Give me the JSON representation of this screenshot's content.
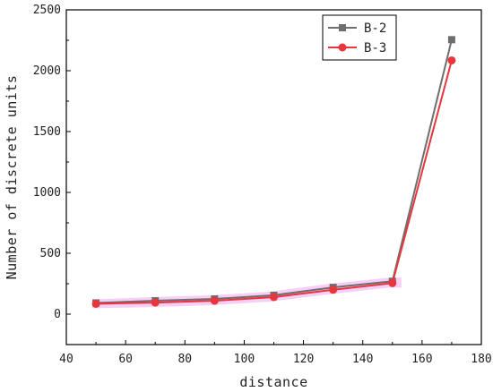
{
  "chart_data": {
    "type": "line",
    "title": "",
    "xlabel": "distance",
    "ylabel": "Number of discrete units",
    "xlim": [
      40,
      180
    ],
    "ylim": [
      -250,
      2500
    ],
    "x_ticks": [
      40,
      60,
      80,
      100,
      120,
      140,
      160,
      180
    ],
    "y_ticks": [
      0,
      500,
      1000,
      1500,
      2000,
      2500
    ],
    "grid": false,
    "legend_position": "top-right",
    "series": [
      {
        "name": "B-2",
        "marker": "square",
        "color": "#6e6e6e",
        "x": [
          50,
          70,
          90,
          110,
          130,
          150,
          170
        ],
        "y": [
          92,
          110,
          125,
          155,
          220,
          270,
          2255
        ]
      },
      {
        "name": "B-3",
        "marker": "circle",
        "color": "#e8363c",
        "x": [
          50,
          70,
          90,
          110,
          130,
          150,
          170
        ],
        "y": [
          85,
          95,
          110,
          140,
          200,
          255,
          2085
        ]
      }
    ]
  }
}
